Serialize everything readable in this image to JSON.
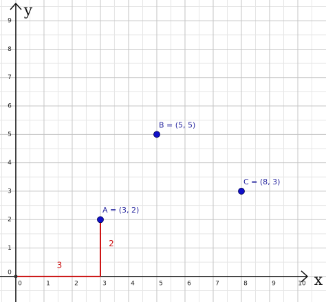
{
  "chart_data": {
    "type": "scatter",
    "x_label": "x",
    "y_label": "y",
    "xlim": [
      -0.56,
      11.0
    ],
    "ylim": [
      -0.9,
      9.73
    ],
    "xticks": [
      0,
      1,
      2,
      3,
      4,
      5,
      6,
      7,
      8,
      9,
      10
    ],
    "yticks": [
      0,
      1,
      2,
      3,
      4,
      5,
      6,
      7,
      8,
      9
    ],
    "grid": true,
    "minor_grid": true,
    "series": [
      {
        "color": "#1010c8",
        "x": [
          3,
          5,
          8
        ],
        "values": [
          2,
          5,
          3
        ],
        "value_labels": [
          "A = (3, 2)",
          "B = (5, 5)",
          "C = (8, 3)"
        ]
      }
    ],
    "segments": [
      {
        "color": "#cc1111",
        "x": [
          0,
          3
        ],
        "values": [
          0,
          0
        ],
        "length": 3
      },
      {
        "color": "#cc1111",
        "x": [
          3,
          3
        ],
        "values": [
          0,
          2
        ],
        "length": 2
      }
    ]
  }
}
